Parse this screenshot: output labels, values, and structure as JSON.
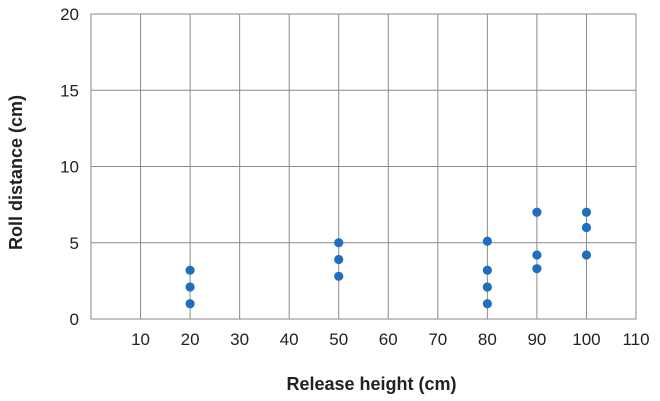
{
  "chart_data": {
    "type": "scatter",
    "title": "",
    "xlabel": "Release height (cm)",
    "ylabel": "Roll distance (cm)",
    "xlim": [
      0,
      110
    ],
    "ylim": [
      0,
      20
    ],
    "x_ticks": [
      10,
      20,
      30,
      40,
      50,
      60,
      70,
      80,
      90,
      100,
      110
    ],
    "y_ticks": [
      0,
      5,
      10,
      15,
      20
    ],
    "grid": true,
    "legend": "none",
    "marker_color": "#1f6fbf",
    "points": [
      {
        "x": 20,
        "y": 1.0
      },
      {
        "x": 20,
        "y": 2.1
      },
      {
        "x": 20,
        "y": 3.2
      },
      {
        "x": 50,
        "y": 2.8
      },
      {
        "x": 50,
        "y": 3.9
      },
      {
        "x": 50,
        "y": 5.0
      },
      {
        "x": 80,
        "y": 1.0
      },
      {
        "x": 80,
        "y": 2.1
      },
      {
        "x": 80,
        "y": 3.2
      },
      {
        "x": 80,
        "y": 5.1
      },
      {
        "x": 90,
        "y": 3.3
      },
      {
        "x": 90,
        "y": 4.2
      },
      {
        "x": 90,
        "y": 7.0
      },
      {
        "x": 100,
        "y": 4.2
      },
      {
        "x": 100,
        "y": 6.0
      },
      {
        "x": 100,
        "y": 7.0
      }
    ]
  }
}
